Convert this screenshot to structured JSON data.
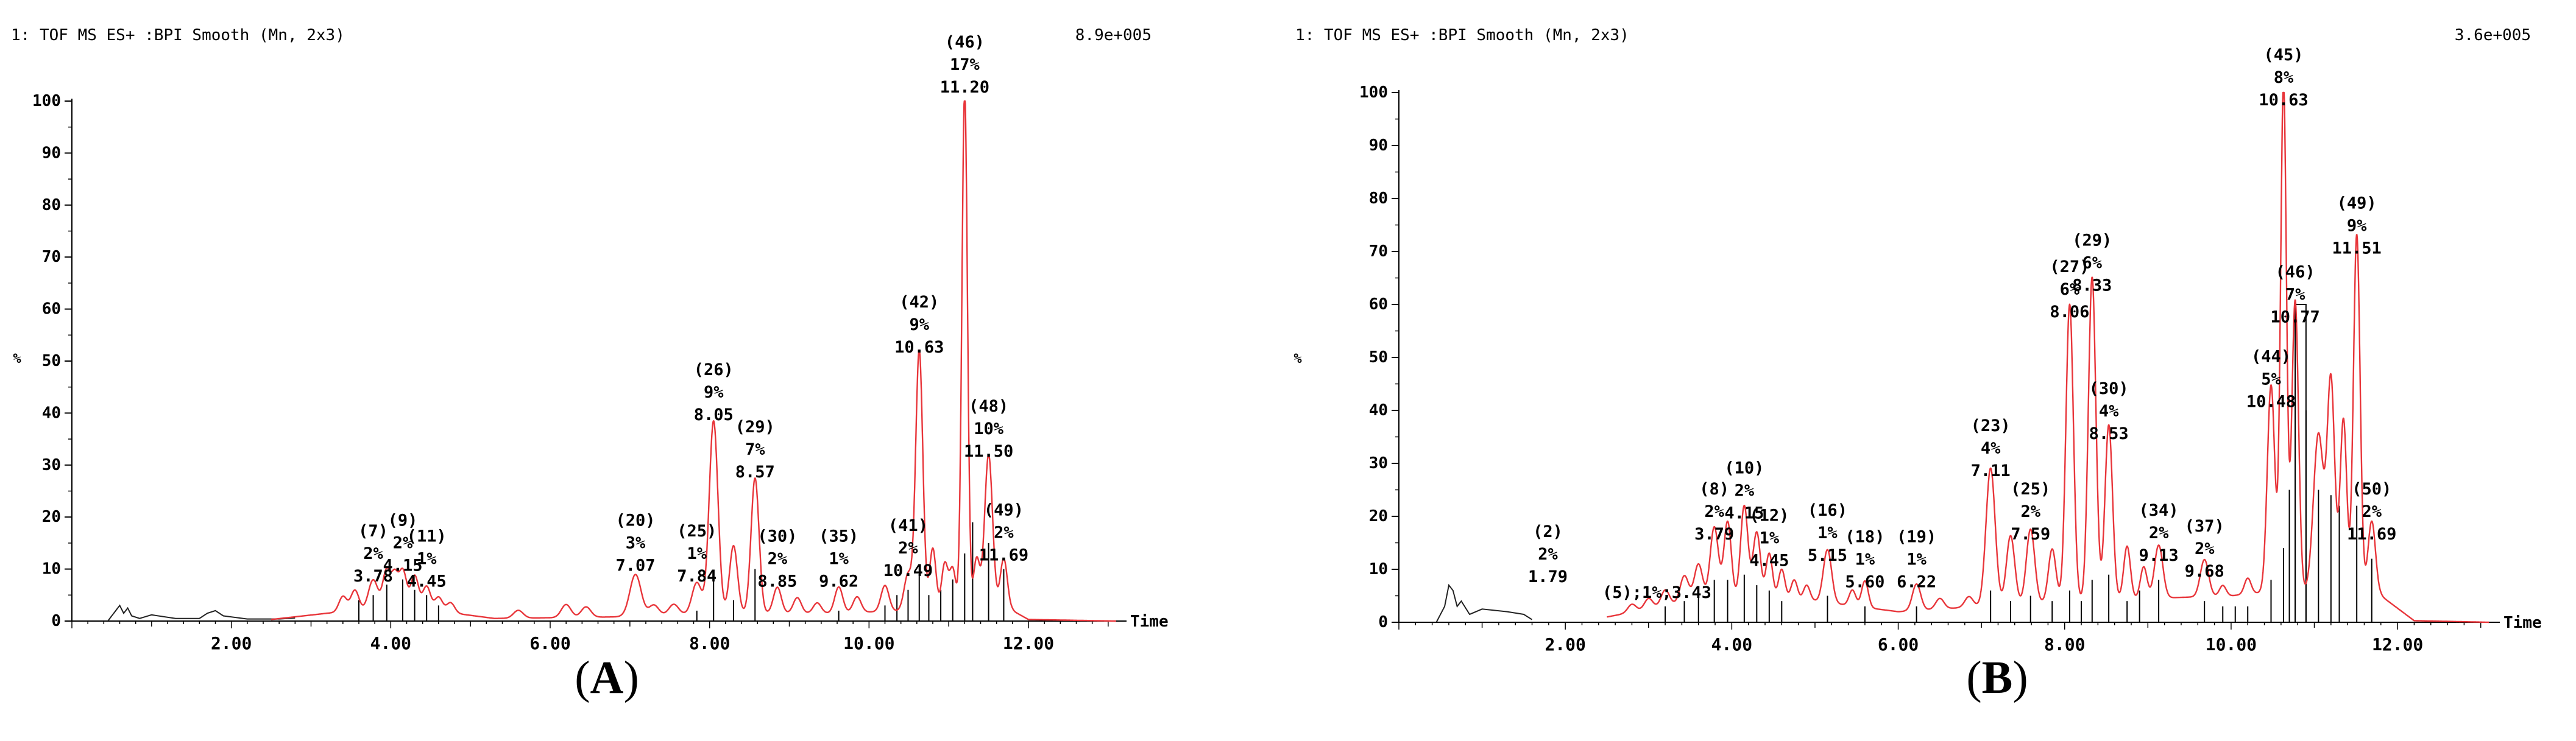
{
  "chart_data": [
    {
      "type": "line",
      "panel_label": "A",
      "header": "1: TOF MS ES+ :BPI Smooth (Mn, 2x3)",
      "intensity_label": "8.9e+005",
      "xlabel": "Time",
      "ylabel": "%",
      "xlim": [
        0,
        13.2
      ],
      "ylim": [
        0,
        100
      ],
      "xticks": [
        "2.00",
        "4.00",
        "6.00",
        "8.00",
        "10.00",
        "12.00"
      ],
      "yticks": [
        "0",
        "10",
        "20",
        "30",
        "40",
        "50",
        "60",
        "70",
        "80",
        "90",
        "100"
      ],
      "colors": {
        "trace": "#e8353a",
        "sticks": "#000000",
        "axis": "#000000"
      },
      "early_trace": [
        [
          0.45,
          0
        ],
        [
          0.55,
          2
        ],
        [
          0.6,
          3
        ],
        [
          0.65,
          1.5
        ],
        [
          0.7,
          2.5
        ],
        [
          0.75,
          1
        ],
        [
          0.85,
          0.5
        ],
        [
          1.0,
          1.2
        ],
        [
          1.3,
          0.5
        ],
        [
          1.6,
          0.5
        ],
        [
          1.7,
          1.5
        ],
        [
          1.8,
          2
        ],
        [
          1.9,
          1
        ],
        [
          2.2,
          0.4
        ],
        [
          2.6,
          0.4
        ],
        [
          2.8,
          0.6
        ]
      ],
      "series": [
        {
          "name": "",
          "baseline": [
            [
              0,
              0
            ],
            [
              2.5,
              0.3
            ],
            [
              3.2,
              1.5
            ],
            [
              3.6,
              2
            ],
            [
              4.8,
              1.5
            ],
            [
              5.3,
              0.5
            ],
            [
              6.8,
              0.8
            ],
            [
              7.5,
              1.2
            ],
            [
              8.0,
              1.5
            ],
            [
              9.5,
              1.5
            ],
            [
              10.5,
              2
            ],
            [
              11.8,
              2
            ],
            [
              12.0,
              0.3
            ],
            [
              13.1,
              0
            ]
          ],
          "peaks": [
            [
              3.4,
              3,
              0.05
            ],
            [
              3.55,
              4,
              0.05
            ],
            [
              3.78,
              6,
              0.06
            ],
            [
              3.95,
              8,
              0.05
            ],
            [
              4.05,
              6,
              0.04
            ],
            [
              4.15,
              8,
              0.05
            ],
            [
              4.3,
              7,
              0.05
            ],
            [
              4.45,
              5,
              0.05
            ],
            [
              4.6,
              3,
              0.05
            ],
            [
              4.75,
              2,
              0.05
            ],
            [
              5.6,
              1.5,
              0.06
            ],
            [
              6.2,
              2.5,
              0.06
            ],
            [
              6.45,
              2,
              0.06
            ],
            [
              7.07,
              8,
              0.07
            ],
            [
              7.3,
              2,
              0.06
            ],
            [
              7.55,
              2,
              0.06
            ],
            [
              7.84,
              6,
              0.06
            ],
            [
              8.05,
              37,
              0.055
            ],
            [
              8.3,
              13,
              0.05
            ],
            [
              8.57,
              26,
              0.05
            ],
            [
              8.85,
              5,
              0.05
            ],
            [
              9.1,
              3,
              0.05
            ],
            [
              9.35,
              2,
              0.05
            ],
            [
              9.62,
              5,
              0.05
            ],
            [
              9.85,
              3,
              0.05
            ],
            [
              10.2,
              5,
              0.05
            ],
            [
              10.49,
              7,
              0.05
            ],
            [
              10.63,
              50,
              0.045
            ],
            [
              10.8,
              12,
              0.04
            ],
            [
              10.95,
              9,
              0.04
            ],
            [
              11.05,
              8,
              0.04
            ],
            [
              11.2,
              100,
              0.035
            ],
            [
              11.35,
              10,
              0.04
            ],
            [
              11.5,
              30,
              0.05
            ],
            [
              11.69,
              10,
              0.045
            ]
          ]
        }
      ],
      "sticks": [
        [
          3.6,
          4
        ],
        [
          3.78,
          5
        ],
        [
          3.95,
          7
        ],
        [
          4.15,
          8
        ],
        [
          4.3,
          6
        ],
        [
          4.45,
          5
        ],
        [
          4.6,
          3
        ],
        [
          7.84,
          2
        ],
        [
          8.05,
          8
        ],
        [
          8.3,
          4
        ],
        [
          8.57,
          10
        ],
        [
          9.62,
          2
        ],
        [
          10.2,
          3
        ],
        [
          10.35,
          5
        ],
        [
          10.49,
          6
        ],
        [
          10.63,
          9
        ],
        [
          10.75,
          5
        ],
        [
          10.9,
          6
        ],
        [
          11.05,
          8
        ],
        [
          11.2,
          13
        ],
        [
          11.3,
          19
        ],
        [
          11.5,
          15
        ],
        [
          11.69,
          10
        ]
      ],
      "annotations": [
        {
          "x": 3.78,
          "y": 6,
          "lines": [
            "(7)",
            "2%",
            "3.78"
          ]
        },
        {
          "x": 4.15,
          "y": 8,
          "lines": [
            "(9)",
            "2%",
            "4.15"
          ]
        },
        {
          "x": 4.45,
          "y": 5,
          "lines": [
            "(11)",
            "1%",
            "4.45"
          ]
        },
        {
          "x": 7.07,
          "y": 8,
          "lines": [
            "(20)",
            "3%",
            "7.07"
          ]
        },
        {
          "x": 7.84,
          "y": 6,
          "lines": [
            "(25)",
            "1%",
            "7.84"
          ]
        },
        {
          "x": 8.05,
          "y": 37,
          "lines": [
            "(26)",
            "9%",
            "8.05"
          ]
        },
        {
          "x": 8.57,
          "y": 26,
          "lines": [
            "(29)",
            "7%",
            "8.57"
          ]
        },
        {
          "x": 8.85,
          "y": 5,
          "lines": [
            "(30)",
            "2%",
            "8.85"
          ]
        },
        {
          "x": 9.62,
          "y": 5,
          "lines": [
            "(35)",
            "1%",
            "9.62"
          ]
        },
        {
          "x": 10.49,
          "y": 7,
          "lines": [
            "(41)",
            "2%",
            "10.49"
          ]
        },
        {
          "x": 10.63,
          "y": 50,
          "lines": [
            "(42)",
            "9%",
            "10.63"
          ]
        },
        {
          "x": 11.2,
          "y": 100,
          "lines": [
            "(46)",
            "17%",
            "11.20"
          ]
        },
        {
          "x": 11.5,
          "y": 30,
          "lines": [
            "(48)",
            "10%",
            "11.50"
          ]
        },
        {
          "x": 11.69,
          "y": 10,
          "lines": [
            "(49)",
            "2%",
            "11.69"
          ]
        }
      ]
    },
    {
      "type": "line",
      "panel_label": "B",
      "header": "1: TOF MS ES+ :BPI Smooth (Mn, 2x3)",
      "intensity_label": "3.6e+005",
      "xlabel": "Time",
      "ylabel": "%",
      "xlim": [
        0,
        13.2
      ],
      "ylim": [
        0,
        100
      ],
      "xticks": [
        "2.00",
        "4.00",
        "6.00",
        "8.00",
        "10.00",
        "12.00"
      ],
      "yticks": [
        "0",
        "10",
        "20",
        "30",
        "40",
        "50",
        "60",
        "70",
        "80",
        "90",
        "100"
      ],
      "colors": {
        "trace": "#e8353a",
        "sticks": "#000000",
        "axis": "#000000"
      },
      "early_trace": [
        [
          0.45,
          0
        ],
        [
          0.55,
          3
        ],
        [
          0.6,
          7
        ],
        [
          0.65,
          6
        ],
        [
          0.7,
          3
        ],
        [
          0.75,
          4
        ],
        [
          0.85,
          1.5
        ],
        [
          1.0,
          2.5
        ],
        [
          1.3,
          2
        ],
        [
          1.5,
          1.5
        ],
        [
          1.6,
          0.5
        ]
      ],
      "series": [
        {
          "name": "",
          "baseline": [
            [
              0,
              0
            ],
            [
              1.2,
              1
            ],
            [
              1.79,
              2
            ],
            [
              2.5,
              1
            ],
            [
              3.0,
              2.5
            ],
            [
              3.5,
              4
            ],
            [
              5.0,
              4
            ],
            [
              6.0,
              2
            ],
            [
              7.0,
              3
            ],
            [
              8.0,
              4
            ],
            [
              10.0,
              5
            ],
            [
              10.6,
              6
            ],
            [
              11.8,
              5
            ],
            [
              12.2,
              0.3
            ],
            [
              13.1,
              0
            ]
          ],
          "peaks": [
            [
              1.79,
              6,
              0.08
            ],
            [
              2.8,
              1.5,
              0.05
            ],
            [
              3.0,
              2,
              0.05
            ],
            [
              3.2,
              3,
              0.05
            ],
            [
              3.43,
              5,
              0.05
            ],
            [
              3.6,
              7,
              0.05
            ],
            [
              3.79,
              14,
              0.05
            ],
            [
              3.95,
              15,
              0.045
            ],
            [
              4.15,
              18,
              0.045
            ],
            [
              4.3,
              13,
              0.045
            ],
            [
              4.45,
              9,
              0.04
            ],
            [
              4.6,
              6,
              0.04
            ],
            [
              4.75,
              4,
              0.04
            ],
            [
              4.9,
              3,
              0.04
            ],
            [
              5.15,
              10,
              0.05
            ],
            [
              5.45,
              3,
              0.04
            ],
            [
              5.6,
              5,
              0.04
            ],
            [
              6.22,
              5,
              0.05
            ],
            [
              6.5,
              2,
              0.05
            ],
            [
              6.85,
              2,
              0.05
            ],
            [
              7.11,
              26,
              0.055
            ],
            [
              7.35,
              13,
              0.05
            ],
            [
              7.59,
              14,
              0.05
            ],
            [
              7.85,
              10,
              0.045
            ],
            [
              8.06,
              56,
              0.045
            ],
            [
              8.33,
              61,
              0.045
            ],
            [
              8.53,
              33,
              0.045
            ],
            [
              8.75,
              10,
              0.04
            ],
            [
              8.95,
              6,
              0.04
            ],
            [
              9.13,
              10,
              0.05
            ],
            [
              9.68,
              7,
              0.05
            ],
            [
              9.9,
              2,
              0.04
            ],
            [
              10.2,
              3,
              0.04
            ],
            [
              10.48,
              39,
              0.045
            ],
            [
              10.63,
              96,
              0.035
            ],
            [
              10.77,
              55,
              0.04
            ],
            [
              11.05,
              30,
              0.06
            ],
            [
              11.2,
              40,
              0.045
            ],
            [
              11.35,
              33,
              0.04
            ],
            [
              11.51,
              68,
              0.04
            ],
            [
              11.69,
              14,
              0.045
            ]
          ]
        }
      ],
      "sticks": [
        [
          3.2,
          3
        ],
        [
          3.43,
          4
        ],
        [
          3.6,
          6
        ],
        [
          3.79,
          8
        ],
        [
          3.95,
          8
        ],
        [
          4.15,
          9
        ],
        [
          4.3,
          7
        ],
        [
          4.45,
          6
        ],
        [
          4.6,
          4
        ],
        [
          5.15,
          5
        ],
        [
          5.6,
          3
        ],
        [
          6.22,
          3
        ],
        [
          7.11,
          6
        ],
        [
          7.35,
          4
        ],
        [
          7.59,
          5
        ],
        [
          7.85,
          4
        ],
        [
          8.06,
          6
        ],
        [
          8.2,
          4
        ],
        [
          8.33,
          8
        ],
        [
          8.53,
          9
        ],
        [
          8.75,
          4
        ],
        [
          8.9,
          6
        ],
        [
          9.13,
          8
        ],
        [
          9.68,
          4
        ],
        [
          9.9,
          3
        ],
        [
          10.05,
          3
        ],
        [
          10.2,
          3
        ],
        [
          10.48,
          8
        ],
        [
          10.63,
          14
        ],
        [
          10.7,
          25
        ],
        [
          10.77,
          60
        ],
        [
          10.9,
          40
        ],
        [
          11.05,
          25
        ],
        [
          11.2,
          24
        ],
        [
          11.3,
          22
        ],
        [
          11.51,
          22
        ],
        [
          11.69,
          12
        ]
      ],
      "bracket": {
        "x1": 10.77,
        "x2": 10.9,
        "y": 60
      },
      "annotations": [
        {
          "x": 1.79,
          "y": 6,
          "lines": [
            "(2)",
            "2%",
            "1.79"
          ]
        },
        {
          "x": 3.1,
          "y": 3,
          "lines": [
            "(5);1%;3.43"
          ]
        },
        {
          "x": 3.79,
          "y": 14,
          "lines": [
            "(8)",
            "2%",
            "3.79"
          ]
        },
        {
          "x": 4.15,
          "y": 18,
          "lines": [
            "(10)",
            "2%",
            "4.15"
          ]
        },
        {
          "x": 4.45,
          "y": 9,
          "lines": [
            "(12)",
            "1%",
            "4.45"
          ]
        },
        {
          "x": 5.15,
          "y": 10,
          "lines": [
            "(16)",
            "1%",
            "5.15"
          ]
        },
        {
          "x": 5.6,
          "y": 5,
          "lines": [
            "(18)",
            "1%",
            "5.60"
          ]
        },
        {
          "x": 6.22,
          "y": 5,
          "lines": [
            "(19)",
            "1%",
            "6.22"
          ]
        },
        {
          "x": 7.11,
          "y": 26,
          "lines": [
            "(23)",
            "4%",
            "7.11"
          ]
        },
        {
          "x": 7.59,
          "y": 14,
          "lines": [
            "(25)",
            "2%",
            "7.59"
          ]
        },
        {
          "x": 8.06,
          "y": 56,
          "lines": [
            "(27)",
            "6%",
            "8.06"
          ]
        },
        {
          "x": 8.33,
          "y": 61,
          "lines": [
            "(29)",
            "6%",
            "8.33"
          ]
        },
        {
          "x": 8.53,
          "y": 33,
          "lines": [
            "(30)",
            "4%",
            "8.53"
          ]
        },
        {
          "x": 9.13,
          "y": 10,
          "lines": [
            "(34)",
            "2%",
            "9.13"
          ]
        },
        {
          "x": 9.68,
          "y": 7,
          "lines": [
            "(37)",
            "2%",
            "9.68"
          ]
        },
        {
          "x": 10.48,
          "y": 39,
          "lines": [
            "(44)",
            "5%",
            "10.48"
          ]
        },
        {
          "x": 10.63,
          "y": 96,
          "lines": [
            "(45)",
            "8%",
            "10.63"
          ]
        },
        {
          "x": 10.77,
          "y": 55,
          "lines": [
            "(46)",
            "7%",
            "10.77"
          ]
        },
        {
          "x": 11.51,
          "y": 68,
          "lines": [
            "(49)",
            "9%",
            "11.51"
          ]
        },
        {
          "x": 11.69,
          "y": 14,
          "lines": [
            "(50)",
            "2%",
            "11.69"
          ]
        }
      ]
    }
  ]
}
